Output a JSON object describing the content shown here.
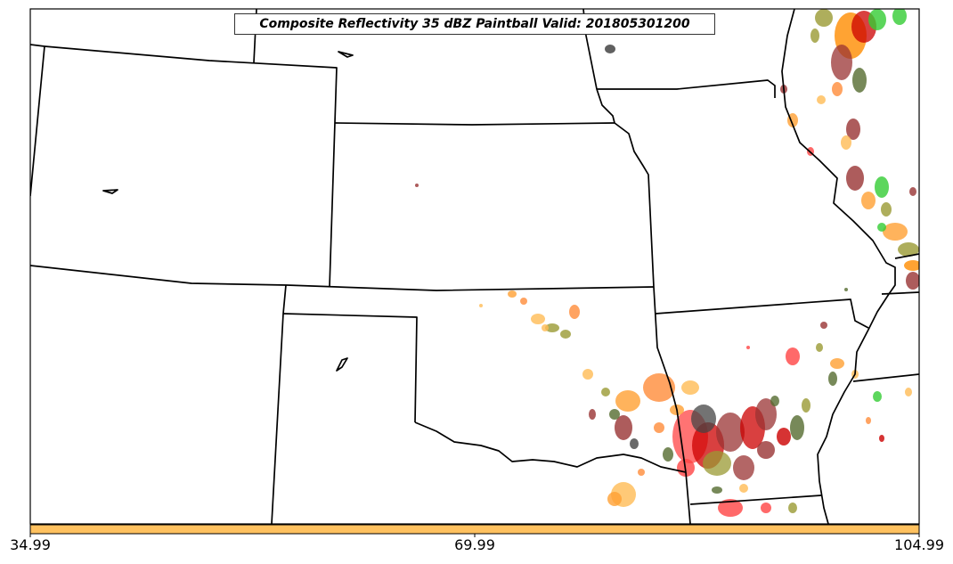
{
  "title": "Composite Reflectivity 35 dBZ Paintball Valid: 201805301200",
  "colorbar": {
    "fill_color": "#ffc15f",
    "tick_labels": [
      "34.99",
      "69.99",
      "104.99"
    ]
  },
  "chart_data": {
    "type": "map",
    "title": "Composite Reflectivity 35 dBZ Paintball Valid: 201805301200",
    "colorbar_ticks": [
      34.99,
      69.99,
      104.99
    ],
    "colorbar_range": [
      34.99,
      104.99
    ],
    "member_colors": [
      "#ffa033",
      "#ff4444",
      "#cc0000",
      "#993333",
      "#556b2f",
      "#9a9a33",
      "#33cc33",
      "#444444",
      "#ff8c3a",
      "#ffbb55"
    ],
    "border_color": "#000000",
    "background": "#ffffff"
  }
}
